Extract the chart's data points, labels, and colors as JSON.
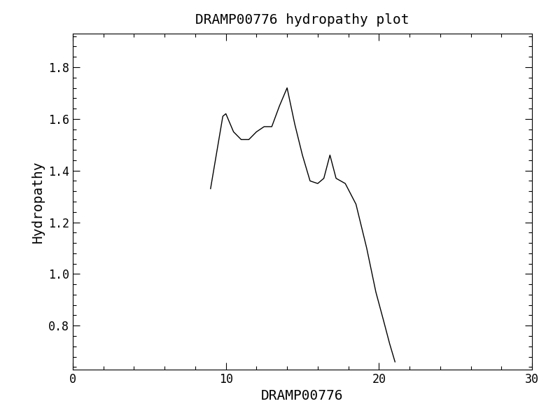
{
  "title": "DRAMP00776 hydropathy plot",
  "xlabel": "DRAMP00776",
  "ylabel": "Hydropathy",
  "xlim": [
    0,
    30
  ],
  "ylim": [
    0.63,
    1.93
  ],
  "xticks": [
    0,
    10,
    20,
    30
  ],
  "yticks": [
    0.8,
    1.0,
    1.2,
    1.4,
    1.6,
    1.8
  ],
  "line_color": "#000000",
  "line_width": 1.0,
  "background_color": "#ffffff",
  "x": [
    9.0,
    9.8,
    10.0,
    10.5,
    11.0,
    11.5,
    12.0,
    12.5,
    13.0,
    13.5,
    14.0,
    14.5,
    15.0,
    15.5,
    16.0,
    16.4,
    16.8,
    17.2,
    17.8,
    18.5,
    19.2,
    19.8,
    20.3,
    20.7,
    21.0,
    21.05
  ],
  "y": [
    1.33,
    1.61,
    1.62,
    1.55,
    1.52,
    1.52,
    1.55,
    1.57,
    1.57,
    1.65,
    1.72,
    1.58,
    1.46,
    1.36,
    1.35,
    1.37,
    1.46,
    1.37,
    1.35,
    1.27,
    1.1,
    0.93,
    0.82,
    0.73,
    0.67,
    0.66
  ]
}
